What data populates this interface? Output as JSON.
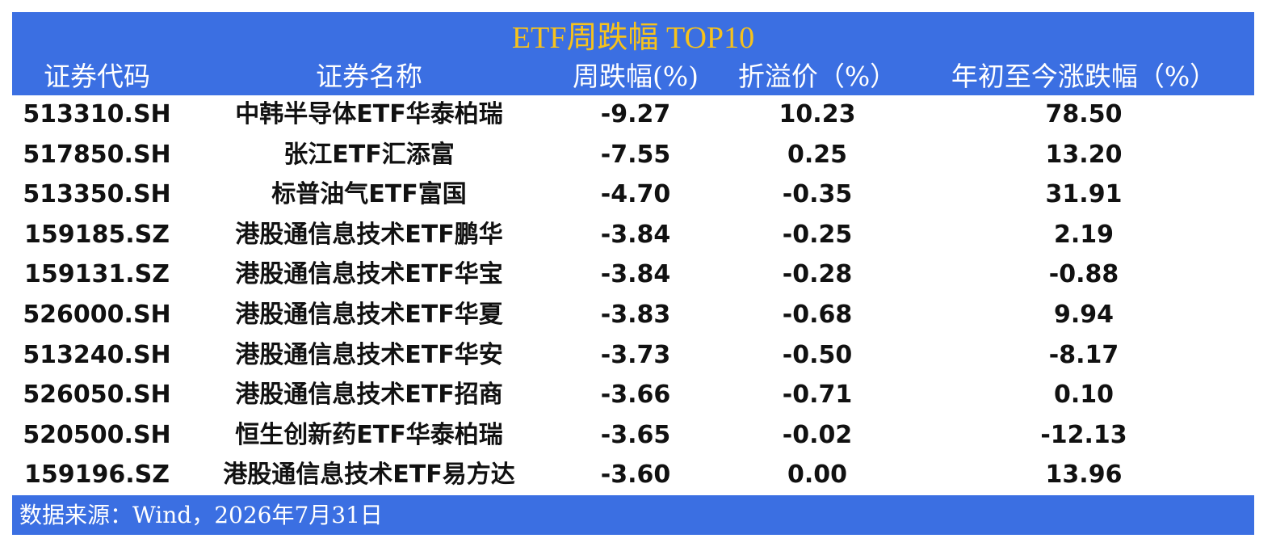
{
  "title": "ETF周跌幅 TOP10",
  "header": {
    "columns": [
      "证券代码",
      "证券名称",
      "周跌幅(%)",
      "折溢价（%）",
      "年初至今涨跌幅（%）"
    ]
  },
  "table": {
    "rows": [
      [
        "513310.SH",
        "中韩半导体ETF华泰柏瑞",
        "-9.27",
        "10.23",
        "78.50"
      ],
      [
        "517850.SH",
        "张江ETF汇添富",
        "-7.55",
        "0.25",
        "13.20"
      ],
      [
        "513350.SH",
        "标普油气ETF富国",
        "-4.70",
        "-0.35",
        "31.91"
      ],
      [
        "159185.SZ",
        "港股通信息技术ETF鹏华",
        "-3.84",
        "-0.25",
        "2.19"
      ],
      [
        "159131.SZ",
        "港股通信息技术ETF华宝",
        "-3.84",
        "-0.28",
        "-0.88"
      ],
      [
        "526000.SH",
        "港股通信息技术ETF华夏",
        "-3.83",
        "-0.68",
        "9.94"
      ],
      [
        "513240.SH",
        "港股通信息技术ETF华安",
        "-3.73",
        "-0.50",
        "-8.17"
      ],
      [
        "526050.SH",
        "港股通信息技术ETF招商",
        "-3.66",
        "-0.71",
        "0.10"
      ],
      [
        "520500.SH",
        "恒生创新药ETF华泰柏瑞",
        "-3.65",
        "-0.02",
        "-12.13"
      ],
      [
        "159196.SZ",
        "港股通信息技术ETF易方达",
        "-3.60",
        "0.00",
        "13.96"
      ]
    ]
  },
  "footer": {
    "source": "数据来源：Wind，2026年7月31日"
  }
}
